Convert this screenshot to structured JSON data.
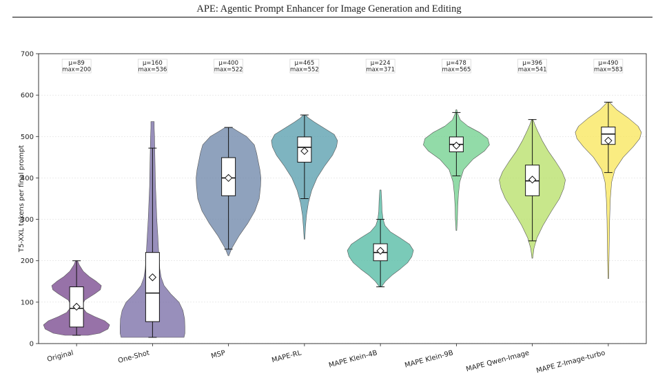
{
  "header": {
    "title": "APE: Agentic Prompt Enhancer for Image Generation and Editing"
  },
  "colors": {
    "Original": "#7a4a8f",
    "One-Shot": "#7b6fa8",
    "MSP": "#6f88ab",
    "MAPE-RL": "#5a9fae",
    "MAPE Klein-4B": "#55bba4",
    "MAPE Klein-9B": "#73d18f",
    "MAPE Qwen-Image": "#b9e06a",
    "MAPE Z-Image-turbo": "#f9e75e"
  },
  "chart_data": {
    "type": "violin",
    "ylabel": "T5-XXL tokens per final prompt",
    "ylim": [
      0,
      700
    ],
    "yticks": [
      0,
      100,
      200,
      300,
      400,
      500,
      600,
      700
    ],
    "grid": "horizontal",
    "categories": [
      "Original",
      "One-Shot",
      "MSP",
      "MAPE-RL",
      "MAPE Klein-4B",
      "MAPE Klein-9B",
      "MAPE Qwen-Image",
      "MAPE Z-Image-turbo"
    ],
    "series": [
      {
        "category": "Original",
        "annotation": [
          "μ=89",
          "max=200"
        ],
        "mean": 89,
        "max": 200,
        "min": 20,
        "q1": 40,
        "median": 85,
        "q3": 137,
        "whisker_low": 20,
        "whisker_high": 200,
        "density": [
          [
            20,
            0.35
          ],
          [
            25,
            0.7
          ],
          [
            35,
            0.95
          ],
          [
            45,
            1.0
          ],
          [
            55,
            0.85
          ],
          [
            65,
            0.55
          ],
          [
            75,
            0.3
          ],
          [
            90,
            0.15
          ],
          [
            105,
            0.25
          ],
          [
            120,
            0.55
          ],
          [
            130,
            0.72
          ],
          [
            140,
            0.75
          ],
          [
            150,
            0.6
          ],
          [
            162,
            0.38
          ],
          [
            175,
            0.2
          ],
          [
            190,
            0.08
          ],
          [
            200,
            0.03
          ]
        ]
      },
      {
        "category": "One-Shot",
        "annotation": [
          "μ=160",
          "max=536"
        ],
        "mean": 160,
        "max": 536,
        "min": 15,
        "q1": 53,
        "median": 122,
        "q3": 220,
        "whisker_low": 15,
        "whisker_high": 472,
        "density": [
          [
            15,
            0.95
          ],
          [
            25,
            0.98
          ],
          [
            40,
            0.98
          ],
          [
            60,
            0.97
          ],
          [
            80,
            0.92
          ],
          [
            100,
            0.8
          ],
          [
            120,
            0.55
          ],
          [
            140,
            0.35
          ],
          [
            160,
            0.26
          ],
          [
            180,
            0.22
          ],
          [
            200,
            0.2
          ],
          [
            230,
            0.18
          ],
          [
            260,
            0.16
          ],
          [
            300,
            0.13
          ],
          [
            340,
            0.11
          ],
          [
            380,
            0.09
          ],
          [
            420,
            0.08
          ],
          [
            460,
            0.07
          ],
          [
            500,
            0.06
          ],
          [
            520,
            0.05
          ],
          [
            536,
            0.05
          ]
        ]
      },
      {
        "category": "MSP",
        "annotation": [
          "μ=400",
          "max=522"
        ],
        "mean": 400,
        "max": 522,
        "min": 212,
        "q1": 357,
        "median": 400,
        "q3": 449,
        "whisker_low": 228,
        "whisker_high": 522,
        "density": [
          [
            212,
            0.01
          ],
          [
            230,
            0.1
          ],
          [
            260,
            0.32
          ],
          [
            290,
            0.58
          ],
          [
            320,
            0.8
          ],
          [
            350,
            0.93
          ],
          [
            380,
            0.97
          ],
          [
            400,
            0.98
          ],
          [
            420,
            0.95
          ],
          [
            440,
            0.9
          ],
          [
            460,
            0.85
          ],
          [
            480,
            0.78
          ],
          [
            500,
            0.55
          ],
          [
            512,
            0.3
          ],
          [
            522,
            0.1
          ]
        ]
      },
      {
        "category": "MAPE-RL",
        "annotation": [
          "μ=465",
          "max=552"
        ],
        "mean": 465,
        "max": 552,
        "min": 252,
        "q1": 438,
        "median": 474,
        "q3": 499,
        "whisker_low": 350,
        "whisker_high": 552,
        "density": [
          [
            252,
            0.01
          ],
          [
            280,
            0.03
          ],
          [
            310,
            0.06
          ],
          [
            340,
            0.12
          ],
          [
            370,
            0.22
          ],
          [
            400,
            0.38
          ],
          [
            430,
            0.62
          ],
          [
            455,
            0.85
          ],
          [
            475,
            0.97
          ],
          [
            490,
            1.0
          ],
          [
            505,
            0.9
          ],
          [
            520,
            0.6
          ],
          [
            535,
            0.3
          ],
          [
            545,
            0.12
          ],
          [
            552,
            0.03
          ]
        ]
      },
      {
        "category": "MAPE Klein-4B",
        "annotation": [
          "μ=224",
          "max=371"
        ],
        "mean": 224,
        "max": 371,
        "min": 137,
        "q1": 200,
        "median": 220,
        "q3": 241,
        "whisker_low": 137,
        "whisker_high": 300,
        "density": [
          [
            137,
            0.03
          ],
          [
            150,
            0.15
          ],
          [
            165,
            0.35
          ],
          [
            180,
            0.6
          ],
          [
            195,
            0.82
          ],
          [
            210,
            0.95
          ],
          [
            225,
            1.0
          ],
          [
            240,
            0.88
          ],
          [
            255,
            0.6
          ],
          [
            270,
            0.3
          ],
          [
            285,
            0.14
          ],
          [
            300,
            0.08
          ],
          [
            320,
            0.05
          ],
          [
            345,
            0.04
          ],
          [
            371,
            0.02
          ]
        ]
      },
      {
        "category": "MAPE Klein-9B",
        "annotation": [
          "μ=478",
          "max=565"
        ],
        "mean": 478,
        "max": 565,
        "min": 273,
        "q1": 463,
        "median": 481,
        "q3": 499,
        "whisker_low": 405,
        "whisker_high": 558,
        "density": [
          [
            273,
            0.01
          ],
          [
            300,
            0.03
          ],
          [
            330,
            0.04
          ],
          [
            360,
            0.06
          ],
          [
            390,
            0.1
          ],
          [
            420,
            0.22
          ],
          [
            445,
            0.5
          ],
          [
            465,
            0.85
          ],
          [
            480,
            1.0
          ],
          [
            495,
            0.95
          ],
          [
            510,
            0.7
          ],
          [
            525,
            0.35
          ],
          [
            540,
            0.12
          ],
          [
            555,
            0.04
          ],
          [
            565,
            0.01
          ]
        ]
      },
      {
        "category": "MAPE Qwen-Image",
        "annotation": [
          "μ=396",
          "max=541"
        ],
        "mean": 396,
        "max": 541,
        "min": 206,
        "q1": 357,
        "median": 393,
        "q3": 431,
        "whisker_low": 248,
        "whisker_high": 541,
        "density": [
          [
            206,
            0.01
          ],
          [
            230,
            0.05
          ],
          [
            255,
            0.14
          ],
          [
            285,
            0.32
          ],
          [
            320,
            0.58
          ],
          [
            350,
            0.82
          ],
          [
            375,
            0.95
          ],
          [
            395,
            1.0
          ],
          [
            415,
            0.9
          ],
          [
            440,
            0.7
          ],
          [
            465,
            0.48
          ],
          [
            490,
            0.3
          ],
          [
            515,
            0.15
          ],
          [
            530,
            0.07
          ],
          [
            541,
            0.02
          ]
        ]
      },
      {
        "category": "MAPE Z-Image-turbo",
        "annotation": [
          "μ=490",
          "max=583"
        ],
        "mean": 490,
        "max": 583,
        "min": 157,
        "q1": 481,
        "median": 506,
        "q3": 523,
        "whisker_low": 413,
        "whisker_high": 583,
        "density": [
          [
            157,
            0.01
          ],
          [
            200,
            0.02
          ],
          [
            250,
            0.03
          ],
          [
            300,
            0.04
          ],
          [
            350,
            0.06
          ],
          [
            390,
            0.1
          ],
          [
            420,
            0.2
          ],
          [
            450,
            0.45
          ],
          [
            475,
            0.75
          ],
          [
            495,
            0.95
          ],
          [
            510,
            1.0
          ],
          [
            525,
            0.9
          ],
          [
            545,
            0.6
          ],
          [
            565,
            0.25
          ],
          [
            583,
            0.03
          ]
        ]
      }
    ]
  }
}
